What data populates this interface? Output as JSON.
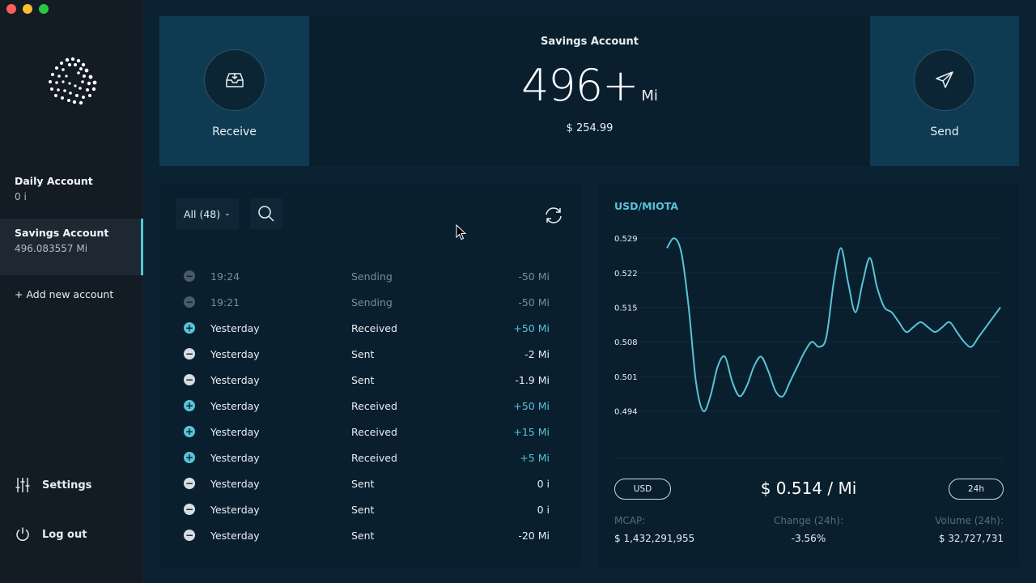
{
  "sidebar": {
    "accounts": [
      {
        "name": "Daily Account",
        "balance": "0 i"
      },
      {
        "name": "Savings Account",
        "balance": "496.083557 Mi"
      }
    ],
    "add_account": "+ Add new account",
    "settings": "Settings",
    "logout": "Log out"
  },
  "top": {
    "receive": "Receive",
    "send": "Send",
    "savings_title": "Savings Account",
    "balance": "496+",
    "unit": "Mi",
    "usd": "$ 254.99"
  },
  "history": {
    "filter": "All (48)",
    "rows": [
      {
        "time": "19:24",
        "type": "Sending",
        "amount": "-50 Mi",
        "kind": "pending"
      },
      {
        "time": "19:21",
        "type": "Sending",
        "amount": "-50 Mi",
        "kind": "pending"
      },
      {
        "time": "Yesterday",
        "type": "Received",
        "amount": "+50 Mi",
        "kind": "in"
      },
      {
        "time": "Yesterday",
        "type": "Sent",
        "amount": "-2 Mi",
        "kind": "out"
      },
      {
        "time": "Yesterday",
        "type": "Sent",
        "amount": "-1.9 Mi",
        "kind": "out"
      },
      {
        "time": "Yesterday",
        "type": "Received",
        "amount": "+50 Mi",
        "kind": "in"
      },
      {
        "time": "Yesterday",
        "type": "Received",
        "amount": "+15 Mi",
        "kind": "in"
      },
      {
        "time": "Yesterday",
        "type": "Received",
        "amount": "+5 Mi",
        "kind": "in"
      },
      {
        "time": "Yesterday",
        "type": "Sent",
        "amount": "0 i",
        "kind": "out"
      },
      {
        "time": "Yesterday",
        "type": "Sent",
        "amount": "0 i",
        "kind": "out"
      },
      {
        "time": "Yesterday",
        "type": "Sent",
        "amount": "-20 Mi",
        "kind": "out"
      }
    ]
  },
  "market": {
    "pair": "USD/MIOTA",
    "currency_button": "USD",
    "price": "$ 0.514 / Mi",
    "timeframe_button": "24h",
    "mcap_label": "MCAP:",
    "mcap_value": "$ 1,432,291,955",
    "change_label": "Change (24h):",
    "change_value": "-3.56%",
    "volume_label": "Volume (24h):",
    "volume_value": "$ 32,727,731"
  },
  "colors": {
    "accent": "#58c4d8",
    "sidebar": "#131c25",
    "panel": "#0a1f2e",
    "card": "#0f3b52"
  },
  "chart_data": {
    "type": "line",
    "y_ticks": [
      "0.529",
      "0.522",
      "0.515",
      "0.508",
      "0.501",
      "0.494"
    ],
    "ylim": [
      0.49,
      0.531
    ],
    "series": [
      {
        "values": [
          0.527,
          0.529,
          0.526,
          0.515,
          0.5,
          0.494,
          0.497,
          0.503,
          0.505,
          0.5,
          0.497,
          0.499,
          0.503,
          0.505,
          0.502,
          0.498,
          0.497,
          0.5,
          0.503,
          0.506,
          0.508,
          0.507,
          0.509,
          0.52,
          0.527,
          0.52,
          0.514,
          0.52,
          0.525,
          0.519,
          0.515,
          0.514,
          0.512,
          0.51,
          0.511,
          0.512,
          0.511,
          0.51,
          0.511,
          0.512,
          0.51,
          0.508,
          0.507,
          0.509,
          0.511,
          0.513,
          0.515
        ]
      }
    ]
  }
}
